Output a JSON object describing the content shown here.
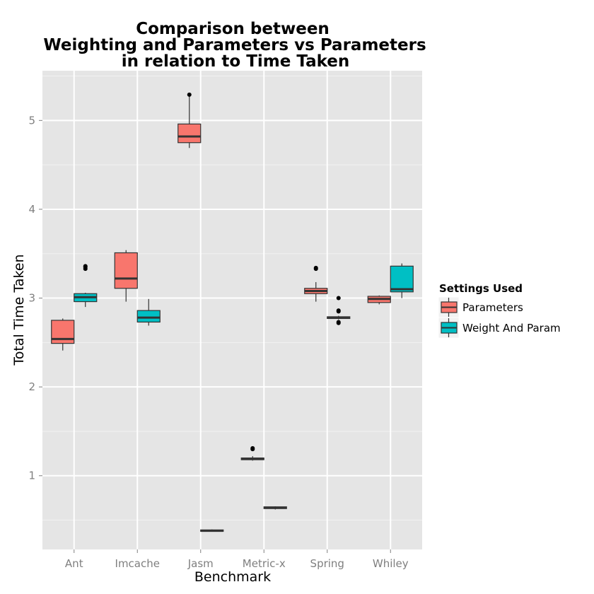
{
  "chart_data": {
    "type": "box",
    "title_lines": [
      "Comparison between",
      "Weighting and Parameters vs Parameters",
      "in relation to Time Taken"
    ],
    "xlabel": "Benchmark",
    "ylabel": "Total Time Taken",
    "categories": [
      "Ant",
      "Imcache",
      "Jasm",
      "Metric-x",
      "Spring",
      "Whiley"
    ],
    "y_ticks": [
      1,
      2,
      3,
      4,
      5
    ],
    "ylim": [
      0.17,
      5.56
    ],
    "grid": true,
    "legend": {
      "title": "Settings Used",
      "placement": "right",
      "entries": [
        "Parameters",
        "Weight And Param"
      ]
    },
    "series": [
      {
        "name": "Parameters",
        "color": "#F8766D",
        "boxes": [
          {
            "category": "Ant",
            "min": 2.41,
            "q1": 2.49,
            "median": 2.54,
            "q3": 2.75,
            "max": 2.77,
            "outliers": []
          },
          {
            "category": "Imcache",
            "min": 2.96,
            "q1": 3.11,
            "median": 3.22,
            "q3": 3.51,
            "max": 3.54,
            "outliers": []
          },
          {
            "category": "Jasm",
            "min": 4.69,
            "q1": 4.75,
            "median": 4.82,
            "q3": 4.96,
            "max": 5.27,
            "outliers": [
              5.29
            ]
          },
          {
            "category": "Metric-x",
            "min": 1.17,
            "q1": 1.18,
            "median": 1.19,
            "q3": 1.2,
            "max": 1.22,
            "outliers": [
              1.3,
              1.31
            ]
          },
          {
            "category": "Spring",
            "min": 2.96,
            "q1": 3.05,
            "median": 3.08,
            "q3": 3.11,
            "max": 3.18,
            "outliers": [
              3.33,
              3.34
            ]
          },
          {
            "category": "Whiley",
            "min": 2.93,
            "q1": 2.95,
            "median": 2.99,
            "q3": 3.02,
            "max": 3.03,
            "outliers": []
          }
        ]
      },
      {
        "name": "Weight And Param",
        "color": "#00BFC4",
        "boxes": [
          {
            "category": "Ant",
            "min": 2.9,
            "q1": 2.96,
            "median": 3.01,
            "q3": 3.05,
            "max": 3.06,
            "outliers": [
              3.33,
              3.35,
              3.36
            ]
          },
          {
            "category": "Imcache",
            "min": 2.69,
            "q1": 2.73,
            "median": 2.78,
            "q3": 2.86,
            "max": 2.99,
            "outliers": []
          },
          {
            "category": "Jasm",
            "min": 0.37,
            "q1": 0.375,
            "median": 0.38,
            "q3": 0.39,
            "max": 0.395,
            "outliers": []
          },
          {
            "category": "Metric-x",
            "min": 0.62,
            "q1": 0.63,
            "median": 0.64,
            "q3": 0.65,
            "max": 0.655,
            "outliers": []
          },
          {
            "category": "Spring",
            "min": 2.76,
            "q1": 2.77,
            "median": 2.78,
            "q3": 2.79,
            "max": 2.8,
            "outliers": [
              2.72,
              2.73,
              2.85,
              2.86,
              3.0
            ]
          },
          {
            "category": "Whiley",
            "min": 3.0,
            "q1": 3.07,
            "median": 3.1,
            "q3": 3.36,
            "max": 3.39,
            "outliers": []
          }
        ]
      }
    ]
  }
}
